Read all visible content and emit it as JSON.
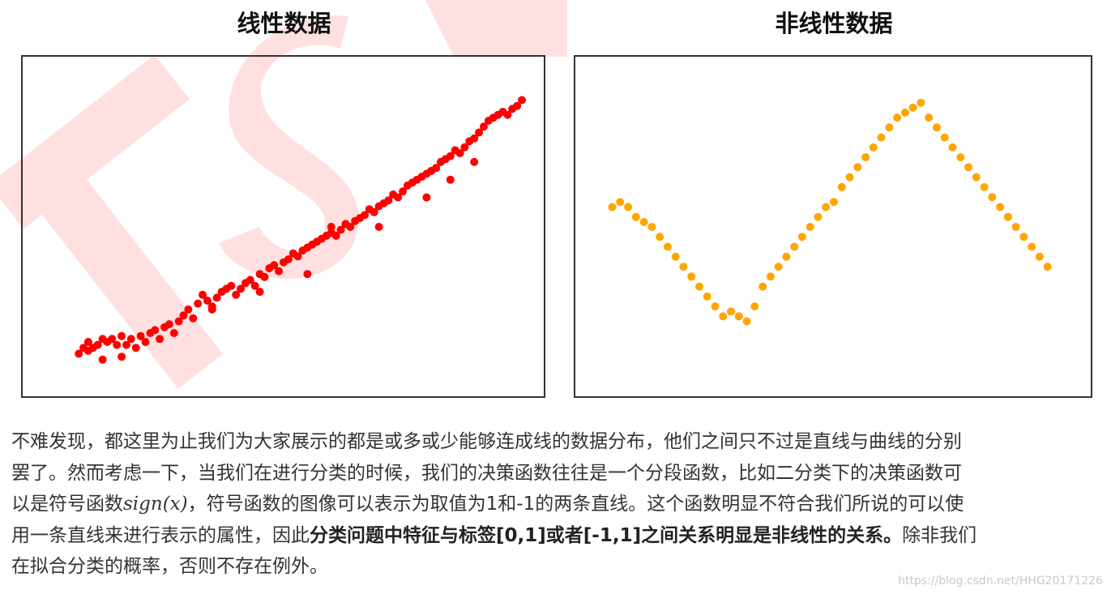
{
  "chart_data": [
    {
      "type": "scatter",
      "title": "线性数据",
      "color": "#ff0000",
      "xlim": [
        0,
        100
      ],
      "ylim": [
        0,
        100
      ],
      "points": [
        [
          7,
          7
        ],
        [
          9,
          8
        ],
        [
          8,
          9
        ],
        [
          11,
          10
        ],
        [
          9,
          11
        ],
        [
          12,
          12
        ],
        [
          13,
          11
        ],
        [
          14,
          12
        ],
        [
          10,
          9
        ],
        [
          16,
          6
        ],
        [
          12,
          5
        ],
        [
          15,
          10
        ],
        [
          16,
          13
        ],
        [
          17,
          10
        ],
        [
          18,
          12
        ],
        [
          19,
          9
        ],
        [
          20,
          13
        ],
        [
          21,
          11
        ],
        [
          22,
          14
        ],
        [
          23,
          15
        ],
        [
          24,
          12
        ],
        [
          25,
          16
        ],
        [
          26,
          17
        ],
        [
          27,
          14
        ],
        [
          28,
          18
        ],
        [
          29,
          20
        ],
        [
          30,
          22
        ],
        [
          31,
          19
        ],
        [
          32,
          24
        ],
        [
          33,
          27
        ],
        [
          34,
          25
        ],
        [
          35,
          23
        ],
        [
          36,
          26
        ],
        [
          37,
          28
        ],
        [
          38,
          29
        ],
        [
          39,
          30
        ],
        [
          40,
          27
        ],
        [
          41,
          29
        ],
        [
          42,
          31
        ],
        [
          43,
          32
        ],
        [
          44,
          30
        ],
        [
          45,
          34
        ],
        [
          46,
          33
        ],
        [
          47,
          36
        ],
        [
          48,
          37
        ],
        [
          49,
          35
        ],
        [
          50,
          38
        ],
        [
          51,
          39
        ],
        [
          52,
          41
        ],
        [
          53,
          40
        ],
        [
          54,
          42
        ],
        [
          55,
          43
        ],
        [
          56,
          44
        ],
        [
          57,
          45
        ],
        [
          58,
          46
        ],
        [
          59,
          47
        ],
        [
          60,
          48
        ],
        [
          61,
          47
        ],
        [
          62,
          49
        ],
        [
          63,
          51
        ],
        [
          64,
          50
        ],
        [
          65,
          52
        ],
        [
          66,
          53
        ],
        [
          67,
          54
        ],
        [
          68,
          56
        ],
        [
          69,
          55
        ],
        [
          70,
          57
        ],
        [
          71,
          58
        ],
        [
          72,
          59
        ],
        [
          73,
          61
        ],
        [
          74,
          60
        ],
        [
          75,
          62
        ],
        [
          76,
          64
        ],
        [
          77,
          65
        ],
        [
          78,
          66
        ],
        [
          79,
          67
        ],
        [
          80,
          68
        ],
        [
          81,
          69
        ],
        [
          82,
          70
        ],
        [
          83,
          72
        ],
        [
          84,
          73
        ],
        [
          85,
          74
        ],
        [
          86,
          76
        ],
        [
          87,
          75
        ],
        [
          88,
          77
        ],
        [
          89,
          79
        ],
        [
          90,
          80
        ],
        [
          91,
          82
        ],
        [
          92,
          84
        ],
        [
          93,
          86
        ],
        [
          94,
          87
        ],
        [
          95,
          88
        ],
        [
          96,
          89
        ],
        [
          97,
          88
        ],
        [
          98,
          90
        ],
        [
          99,
          91
        ],
        [
          100,
          93
        ],
        [
          60,
          50
        ],
        [
          70,
          50
        ],
        [
          35,
          22
        ],
        [
          45,
          28
        ],
        [
          55,
          34
        ],
        [
          80,
          60
        ],
        [
          85,
          66
        ],
        [
          90,
          72
        ]
      ]
    },
    {
      "type": "scatter",
      "title": "非线性数据",
      "color": "#ffa500",
      "xlim": [
        -3,
        3
      ],
      "ylim": [
        -1.5,
        1.5
      ],
      "points": [
        [
          -2.8,
          0.2
        ],
        [
          -2.7,
          0.25
        ],
        [
          -2.6,
          0.2
        ],
        [
          -2.5,
          0.1
        ],
        [
          -2.4,
          0.05
        ],
        [
          -2.3,
          0.0
        ],
        [
          -2.2,
          -0.1
        ],
        [
          -2.1,
          -0.2
        ],
        [
          -2.0,
          -0.3
        ],
        [
          -1.9,
          -0.4
        ],
        [
          -1.8,
          -0.5
        ],
        [
          -1.7,
          -0.6
        ],
        [
          -1.6,
          -0.7
        ],
        [
          -1.5,
          -0.8
        ],
        [
          -1.4,
          -0.9
        ],
        [
          -1.3,
          -0.85
        ],
        [
          -1.2,
          -0.9
        ],
        [
          -1.1,
          -0.95
        ],
        [
          -1.0,
          -0.8
        ],
        [
          -0.9,
          -0.6
        ],
        [
          -0.8,
          -0.5
        ],
        [
          -0.7,
          -0.4
        ],
        [
          -0.6,
          -0.3
        ],
        [
          -0.5,
          -0.2
        ],
        [
          -0.4,
          -0.1
        ],
        [
          -0.3,
          0.0
        ],
        [
          -0.2,
          0.1
        ],
        [
          -0.1,
          0.2
        ],
        [
          0.0,
          0.25
        ],
        [
          0.1,
          0.4
        ],
        [
          0.2,
          0.5
        ],
        [
          0.3,
          0.6
        ],
        [
          0.4,
          0.7
        ],
        [
          0.5,
          0.8
        ],
        [
          0.6,
          0.9
        ],
        [
          0.7,
          1.0
        ],
        [
          0.8,
          1.1
        ],
        [
          0.9,
          1.15
        ],
        [
          1.0,
          1.2
        ],
        [
          1.1,
          1.25
        ],
        [
          1.2,
          1.1
        ],
        [
          1.3,
          1.0
        ],
        [
          1.4,
          0.9
        ],
        [
          1.5,
          0.8
        ],
        [
          1.6,
          0.7
        ],
        [
          1.7,
          0.6
        ],
        [
          1.8,
          0.5
        ],
        [
          1.9,
          0.4
        ],
        [
          2.0,
          0.3
        ],
        [
          2.1,
          0.2
        ],
        [
          2.2,
          0.1
        ],
        [
          2.3,
          0.0
        ],
        [
          2.4,
          -0.1
        ],
        [
          2.5,
          -0.2
        ],
        [
          2.6,
          -0.3
        ],
        [
          2.7,
          -0.4
        ]
      ]
    }
  ],
  "paragraph": {
    "l1": "不难发现，都这里为止我们为大家展示的都是或多或少能够连成线的数据分布，他们之间只不过是直线与曲线的分别",
    "l2": "罢了。然而考虑一下，当我们在进行分类的时候，我们的决策函数往往是一个分段函数，比如二分类下的决策函数可",
    "l3a": "以是符号函数",
    "l3m": "sign(x)",
    "l3b": "，符号函数的图像可以表示为取值为1和-1的两条直线。这个函数明显不符合我们所说的可以使",
    "l4a": "用一条直线来进行表示的属性，因此",
    "l4b": "分类问题中特征与标签[0,1]或者[-1,1]之间关系明显是非线性的关系。",
    "l4c": "除非我们",
    "l5": "在拟合分类的概率，否则不存在例外。"
  },
  "watermark": {
    "big": "TSa",
    "small": "https://blog.csdn.net/HHG20171226"
  }
}
